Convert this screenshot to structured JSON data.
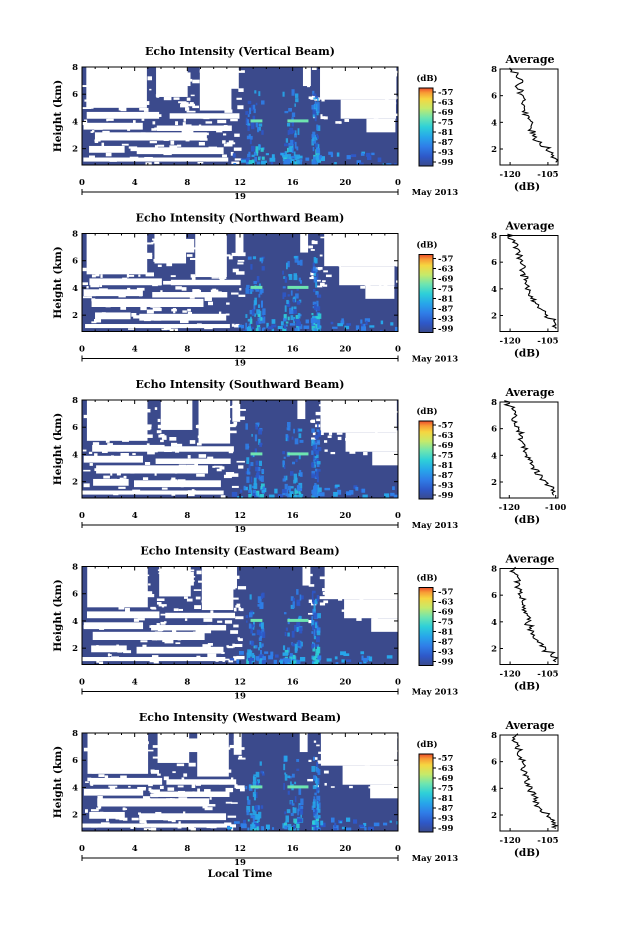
{
  "colors": {
    "background": "#3b4a8c",
    "colormap": [
      "#3a4a8c",
      "#2e58c8",
      "#2f7ee8",
      "#27a6ea",
      "#2ed0d8",
      "#6ee5b0",
      "#c6ea6a",
      "#f6d640",
      "#f89a35",
      "#ec4a2a"
    ]
  },
  "chart_data": [
    {
      "type": "heatmap",
      "title": "Echo Intensity (Vertical Beam)",
      "ylabel": "Height (km)",
      "xlabel": "",
      "x_ticks": [
        "0",
        "4",
        "8",
        "12",
        "16",
        "20",
        "0"
      ],
      "day_label": "19",
      "date_label": "May 2013",
      "y_ticks": [
        "2",
        "4",
        "6",
        "8"
      ],
      "xlim": [
        0,
        24
      ],
      "ylim": [
        0.8,
        8.0
      ],
      "colorbar": {
        "unit": "(dB)",
        "ticks": [
          "-57",
          "-63",
          "-69",
          "-75",
          "-81",
          "-87",
          "-93",
          "-99"
        ],
        "range": [
          -99,
          -57
        ]
      },
      "profile": {
        "title": "Average",
        "xlabel": "(dB)",
        "x_ticks": [
          "-120",
          "-105"
        ],
        "xlim": [
          -124,
          -101
        ],
        "y_ticks": [
          "2",
          "4",
          "6",
          "8"
        ],
        "height": [
          1.0,
          1.4,
          1.8,
          2.2,
          2.6,
          3.0,
          3.4,
          3.8,
          4.2,
          4.6,
          5.0,
          5.4,
          5.8,
          6.2,
          6.6,
          7.0,
          7.4,
          7.8
        ],
        "values": [
          -102,
          -103,
          -105,
          -108,
          -110,
          -111,
          -112,
          -112,
          -113,
          -114,
          -114,
          -115,
          -115,
          -116,
          -117,
          -116,
          -118,
          -119
        ]
      }
    },
    {
      "type": "heatmap",
      "title": "Echo Intensity (Northward Beam)",
      "ylabel": "Height (km)",
      "xlabel": "",
      "x_ticks": [
        "0",
        "4",
        "8",
        "12",
        "16",
        "20",
        "0"
      ],
      "day_label": "19",
      "date_label": "May 2013",
      "y_ticks": [
        "2",
        "4",
        "6",
        "8"
      ],
      "xlim": [
        0,
        24
      ],
      "ylim": [
        0.8,
        8.0
      ],
      "colorbar": {
        "unit": "(dB)",
        "ticks": [
          "-57",
          "-63",
          "-69",
          "-75",
          "-81",
          "-87",
          "-93",
          "-99"
        ],
        "range": [
          -99,
          -57
        ]
      },
      "profile": {
        "title": "Average",
        "xlabel": "(dB)",
        "x_ticks": [
          "-120",
          "-105"
        ],
        "xlim": [
          -124,
          -101
        ],
        "y_ticks": [
          "2",
          "4",
          "6",
          "8"
        ],
        "height": [
          1.0,
          1.4,
          1.8,
          2.2,
          2.6,
          3.0,
          3.4,
          3.8,
          4.2,
          4.6,
          5.0,
          5.4,
          5.8,
          6.2,
          6.6,
          7.0,
          7.4,
          7.8
        ],
        "values": [
          -102,
          -103,
          -105,
          -107,
          -109,
          -111,
          -112,
          -113,
          -113,
          -114,
          -115,
          -115,
          -116,
          -116,
          -117,
          -118,
          -118,
          -120
        ]
      }
    },
    {
      "type": "heatmap",
      "title": "Echo Intensity (Southward Beam)",
      "ylabel": "Height (km)",
      "xlabel": "",
      "x_ticks": [
        "0",
        "4",
        "8",
        "12",
        "16",
        "20",
        "0"
      ],
      "day_label": "19",
      "date_label": "May 2013",
      "y_ticks": [
        "2",
        "4",
        "6",
        "8"
      ],
      "xlim": [
        0,
        24
      ],
      "ylim": [
        0.8,
        8.0
      ],
      "colorbar": {
        "unit": "(dB)",
        "ticks": [
          "-57",
          "-63",
          "-69",
          "-75",
          "-81",
          "-87",
          "-93",
          "-99"
        ],
        "range": [
          -99,
          -57
        ]
      },
      "profile": {
        "title": "Average",
        "xlabel": "(dB)",
        "x_ticks": [
          "-120",
          "-100"
        ],
        "xlim": [
          -124,
          -99
        ],
        "y_ticks": [
          "2",
          "4",
          "6",
          "8"
        ],
        "height": [
          1.0,
          1.4,
          1.8,
          2.2,
          2.6,
          3.0,
          3.4,
          3.8,
          4.2,
          4.6,
          5.0,
          5.4,
          5.8,
          6.2,
          6.6,
          7.0,
          7.4,
          7.8
        ],
        "values": [
          -101,
          -102,
          -104,
          -106,
          -108,
          -110,
          -111,
          -112,
          -113,
          -114,
          -115,
          -115,
          -116,
          -117,
          -118,
          -118,
          -119,
          -121
        ]
      }
    },
    {
      "type": "heatmap",
      "title": "Echo Intensity (Eastward Beam)",
      "ylabel": "Height (km)",
      "xlabel": "",
      "x_ticks": [
        "0",
        "4",
        "8",
        "12",
        "16",
        "20",
        "0"
      ],
      "day_label": "19",
      "date_label": "May 2013",
      "y_ticks": [
        "2",
        "4",
        "6",
        "8"
      ],
      "xlim": [
        0,
        24
      ],
      "ylim": [
        0.8,
        8.0
      ],
      "colorbar": {
        "unit": "(dB)",
        "ticks": [
          "-57",
          "-63",
          "-69",
          "-75",
          "-81",
          "-87",
          "-93",
          "-99"
        ],
        "range": [
          -99,
          -57
        ]
      },
      "profile": {
        "title": "Average",
        "xlabel": "(dB)",
        "x_ticks": [
          "-120",
          "-105"
        ],
        "xlim": [
          -124,
          -101
        ],
        "y_ticks": [
          "2",
          "4",
          "6",
          "8"
        ],
        "height": [
          1.0,
          1.4,
          1.8,
          2.2,
          2.6,
          3.0,
          3.4,
          3.8,
          4.2,
          4.6,
          5.0,
          5.4,
          5.8,
          6.2,
          6.6,
          7.0,
          7.4,
          7.8
        ],
        "values": [
          -102,
          -103,
          -106,
          -108,
          -110,
          -111,
          -112,
          -113,
          -113,
          -114,
          -114,
          -115,
          -116,
          -116,
          -117,
          -117,
          -118,
          -119
        ]
      }
    },
    {
      "type": "heatmap",
      "title": "Echo Intensity (Westward Beam)",
      "ylabel": "Height (km)",
      "xlabel": "Local Time",
      "x_ticks": [
        "0",
        "4",
        "8",
        "12",
        "16",
        "20",
        "0"
      ],
      "day_label": "19",
      "date_label": "May 2013",
      "y_ticks": [
        "2",
        "4",
        "6",
        "8"
      ],
      "xlim": [
        0,
        24
      ],
      "ylim": [
        0.8,
        8.0
      ],
      "colorbar": {
        "unit": "(dB)",
        "ticks": [
          "-57",
          "-63",
          "-69",
          "-75",
          "-81",
          "-87",
          "-93",
          "-99"
        ],
        "range": [
          -99,
          -57
        ]
      },
      "profile": {
        "title": "Average",
        "xlabel": "(dB)",
        "x_ticks": [
          "-120",
          "-105"
        ],
        "xlim": [
          -124,
          -101
        ],
        "y_ticks": [
          "2",
          "4",
          "6",
          "8"
        ],
        "height": [
          1.0,
          1.4,
          1.8,
          2.2,
          2.6,
          3.0,
          3.4,
          3.8,
          4.2,
          4.6,
          5.0,
          5.4,
          5.8,
          6.2,
          6.6,
          7.0,
          7.4,
          7.8
        ],
        "values": [
          -102,
          -103,
          -105,
          -108,
          -109,
          -110,
          -111,
          -112,
          -113,
          -113,
          -114,
          -115,
          -115,
          -116,
          -116,
          -117,
          -118,
          -118
        ]
      }
    }
  ]
}
